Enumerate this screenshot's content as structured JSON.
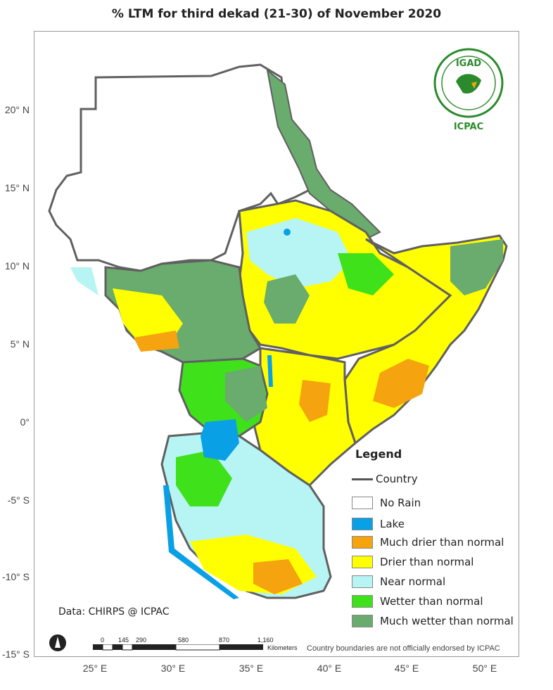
{
  "title": "% LTM  for third dekad (21-30) of November 2020",
  "lat_labels": [
    "20° N",
    "15° N",
    "10° N",
    "5° N",
    "0°",
    "-5° S",
    "-10° S",
    "-15° S"
  ],
  "lon_labels": [
    "25° E",
    "30° E",
    "35° E",
    "40° E",
    "45° E",
    "50° E"
  ],
  "legend": {
    "title": "Legend",
    "country": "Country",
    "items": [
      {
        "label": "No Rain",
        "color": "#ffffff"
      },
      {
        "label": "Lake",
        "color": "#0aa0e6"
      },
      {
        "label": "Much drier than normal",
        "color": "#f5a30e"
      },
      {
        "label": "Drier than normal",
        "color": "#ffff00"
      },
      {
        "label": "Near normal",
        "color": "#b7f4f4"
      },
      {
        "label": "Wetter than normal",
        "color": "#3fe11a"
      },
      {
        "label": "Much wetter than normal",
        "color": "#6aab6e"
      }
    ]
  },
  "data_credit": "Data: CHIRPS @ ICPAC",
  "disclaimer": "Country boundaries are not officially endorsed by ICPAC",
  "scale": {
    "labels": [
      "0",
      "145",
      "290",
      "580",
      "870",
      "1,160"
    ],
    "unit": "Kilometers"
  },
  "logo": {
    "org": "IGAD",
    "sub": "ICPAC"
  },
  "colors": {
    "border": "#606060",
    "lake": "#0aa0e6"
  }
}
